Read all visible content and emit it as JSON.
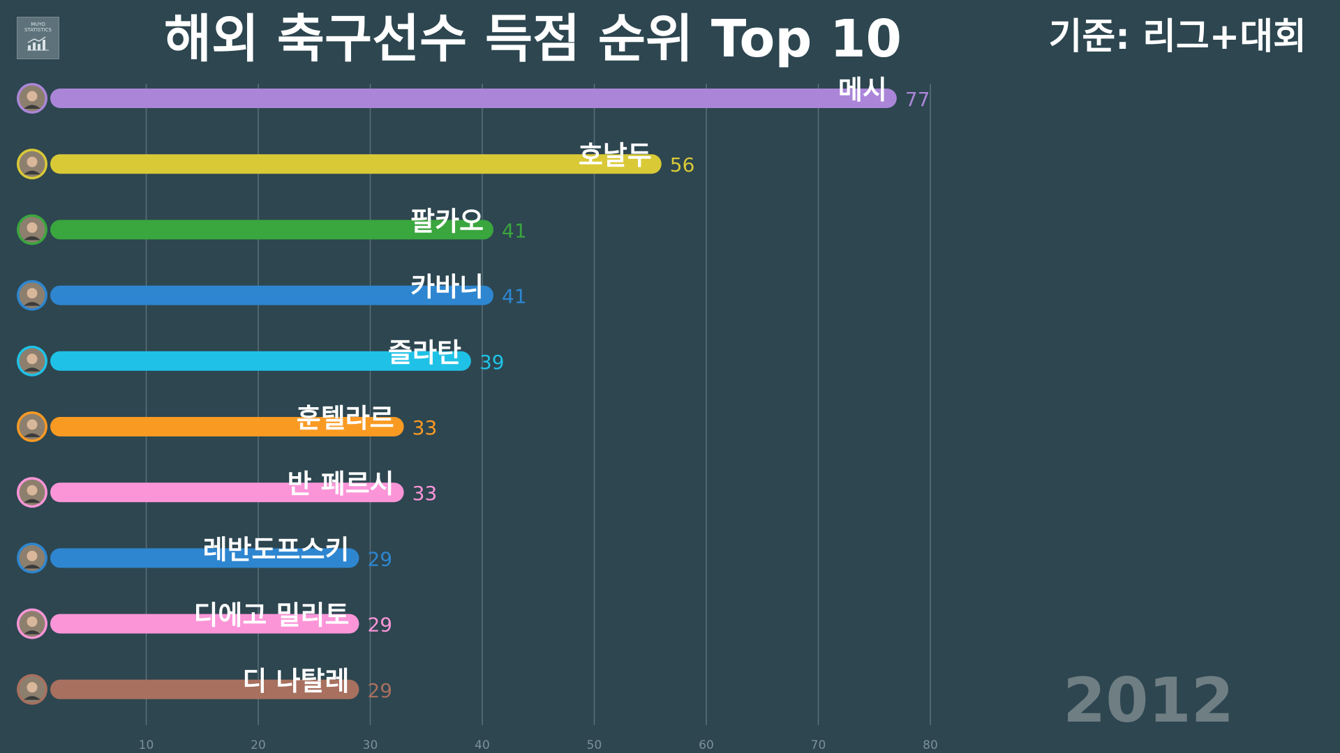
{
  "header": {
    "title": "해외 축구선수 득점 순위 Top 10",
    "criteria": "기준: 리그+대회",
    "logo_text_line1": "MUYO",
    "logo_text_line2": "STATISTICS",
    "logo_icon": "bar-chart-icon"
  },
  "year": "2012",
  "chart_data": {
    "type": "bar",
    "orientation": "horizontal",
    "title": "해외 축구선수 득점 순위 Top 10",
    "xlabel": "",
    "ylabel": "",
    "xlim": [
      0,
      80
    ],
    "grid": true,
    "xticks": [
      10,
      20,
      30,
      40,
      50,
      60,
      70,
      80
    ],
    "categories": [
      "메시",
      "호날두",
      "팔카오",
      "카바니",
      "즐라탄",
      "훈텔라르",
      "반 페르시",
      "레반도프스키",
      "디에고 밀리토",
      "디 나탈레"
    ],
    "values": [
      77,
      56,
      41,
      41,
      39,
      33,
      33,
      29,
      29,
      29
    ],
    "colors": [
      "#ab86d8",
      "#d9c936",
      "#3aa63e",
      "#2e86d0",
      "#1fc2e6",
      "#f99a23",
      "#fb95d8",
      "#2e86d0",
      "#fb95d8",
      "#a8705f"
    ]
  }
}
